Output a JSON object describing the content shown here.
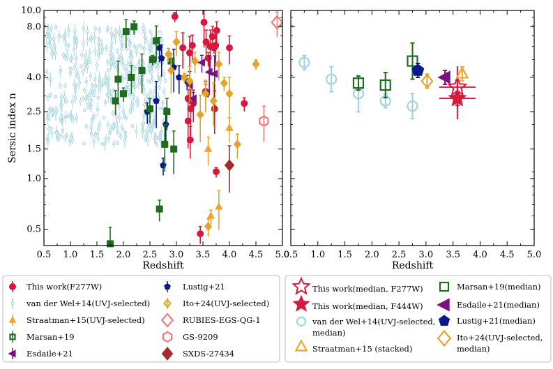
{
  "chart_data": [
    {
      "type": "scatter",
      "panel": "left",
      "xlabel": "Redshift",
      "ylabel": "Sersic index n",
      "xlim": [
        0.5,
        5.0
      ],
      "ylim": [
        0.4,
        10.0
      ],
      "yscale": "log",
      "xticks": [
        "0.5",
        "1.0",
        "1.5",
        "2.0",
        "2.5",
        "3.0",
        "3.5",
        "4.0",
        "4.5",
        "5.0"
      ],
      "yticks": [
        "0.5",
        "1.0",
        "1.5",
        "2.5",
        "4.0",
        "8.0",
        "10.0"
      ],
      "series": [
        {
          "name": "This work(F277W)",
          "color": "#d7193c",
          "marker": "circle",
          "x": [
            2.97,
            3.12,
            3.22,
            3.27,
            3.32,
            3.45,
            3.52,
            3.56,
            3.6,
            3.64,
            3.68,
            3.71,
            3.74,
            3.76,
            3.22,
            3.26,
            3.55,
            3.72,
            4.0,
            4.28,
            3.25,
            3.3,
            3.75
          ],
          "y": [
            9.2,
            6.0,
            3.0,
            2.6,
            2.8,
            0.47,
            8.5,
            6.5,
            5.2,
            6.1,
            7.0,
            6.0,
            6.2,
            7.6,
            2.2,
            1.7,
            3.3,
            2.6,
            6.0,
            2.8,
            5.6,
            6.2,
            1.1
          ]
        },
        {
          "name": "Lustig+21",
          "color": "#0a1a8c",
          "marker": "pentagon",
          "x": [
            2.45,
            2.62,
            2.72,
            2.75,
            2.95,
            3.05,
            3.2,
            2.8,
            2.68
          ],
          "y": [
            2.5,
            2.9,
            5.2,
            1.2,
            4.6,
            4.0,
            3.8,
            2.1,
            6.0
          ]
        },
        {
          "name": "Esdaile+21",
          "color": "#7b1080",
          "marker": "tri-left",
          "x": [
            3.25,
            3.48,
            3.72,
            3.55,
            3.32,
            3.62
          ],
          "y": [
            3.6,
            4.9,
            4.2,
            3.2,
            3.0,
            4.3
          ]
        },
        {
          "name": "Marsan+19",
          "color": "#1f6b1f",
          "marker": "square",
          "x": [
            1.9,
            2.05,
            2.2,
            2.35,
            2.5,
            2.55,
            2.62,
            2.68,
            2.78,
            2.82,
            2.9,
            2.95,
            2.15,
            2.0,
            1.75,
            1.85
          ],
          "y": [
            3.9,
            7.5,
            8.0,
            4.4,
            2.6,
            5.1,
            6.6,
            0.66,
            1.6,
            2.5,
            5.0,
            1.5,
            4.0,
            3.2,
            0.41,
            2.9
          ]
        },
        {
          "name": "Ito+24(UVJ-selected)",
          "color": "#e0a52a",
          "marker": "diamond",
          "x": [
            2.85,
            2.9,
            3.0,
            3.15,
            3.25,
            3.35,
            3.45,
            3.55,
            3.6,
            3.7,
            3.8,
            3.9,
            4.0,
            4.15,
            4.5
          ],
          "y": [
            5.5,
            4.4,
            6.5,
            4.0,
            3.8,
            5.0,
            2.4,
            3.2,
            0.52,
            2.9,
            4.8,
            3.7,
            3.2,
            1.6,
            4.8
          ]
        },
        {
          "name": "RUBIES-EGS-QG-1",
          "color": "#ee7c7c",
          "marker": "diamond-open",
          "x": [
            4.9
          ],
          "y": [
            8.5
          ]
        },
        {
          "name": "GS-9209",
          "color": "#ee7c7c",
          "marker": "hexagon-open",
          "x": [
            4.65
          ],
          "y": [
            2.2
          ]
        },
        {
          "name": "SXDS-27434",
          "color": "#a52a2a",
          "marker": "diamond",
          "x": [
            4.0
          ],
          "y": [
            1.2
          ]
        },
        {
          "name": "van der Wel+14(UVJ-selected)",
          "color": "#9fd3e0",
          "marker": "circle-small",
          "x": [],
          "y": []
        },
        {
          "name": "Straatman+15(UVJ-selected)",
          "color": "#f0a52a",
          "marker": "triangle-up",
          "x": [
            3.6,
            3.65,
            3.8,
            4.0
          ],
          "y": [
            1.5,
            0.6,
            0.68,
            2.0
          ]
        }
      ]
    },
    {
      "type": "scatter",
      "panel": "right",
      "xlabel": "Redshift",
      "xlim": [
        0.5,
        5.0
      ],
      "ylim": [
        0.4,
        10.0
      ],
      "yscale": "log",
      "xticks": [
        "0.5",
        "1.0",
        "1.5",
        "2.0",
        "2.5",
        "3.0",
        "3.5",
        "4.0",
        "4.5",
        "5.0"
      ],
      "series": [
        {
          "name": "This work(median, F277W)",
          "color": "#d7193c",
          "marker": "star-open",
          "x": [
            3.58
          ],
          "y": [
            3.5
          ]
        },
        {
          "name": "This work(median, F444W)",
          "color": "#d7193c",
          "marker": "star",
          "x": [
            3.58
          ],
          "y": [
            3.0
          ]
        },
        {
          "name": "van der Wel+14(UVJ-selected, median)",
          "color": "#9fd3e0",
          "marker": "circle-open",
          "x": [
            0.75,
            1.25,
            1.75,
            2.25,
            2.75
          ],
          "y": [
            4.9,
            3.9,
            3.2,
            2.9,
            2.7
          ]
        },
        {
          "name": "Straatman+15 (stacked)",
          "color": "#f0a52a",
          "marker": "triangle-open",
          "x": [
            3.67
          ],
          "y": [
            4.2
          ]
        },
        {
          "name": "Marsan+19(median)",
          "color": "#1f6b1f",
          "marker": "square-open",
          "x": [
            1.75,
            2.25,
            2.75
          ],
          "y": [
            3.7,
            3.6,
            5.0
          ]
        },
        {
          "name": "Esdaile+21(median)",
          "color": "#7b1080",
          "marker": "tri-left",
          "x": [
            3.35
          ],
          "y": [
            4.0
          ]
        },
        {
          "name": "Lustig+21(median)",
          "color": "#0a1a8c",
          "marker": "pentagon",
          "x": [
            2.85
          ],
          "y": [
            4.4
          ]
        },
        {
          "name": "Ito+24(UVJ-selected, median)",
          "color": "#e0a52a",
          "marker": "diamond-open",
          "x": [
            3.02
          ],
          "y": [
            3.8
          ]
        }
      ]
    }
  ],
  "legend_left": {
    "col1": [
      "This work(F277W)",
      "van der Wel+14(UVJ-selected)",
      "Straatman+15(UVJ-selected)",
      "Marsan+19",
      "Esdaile+21"
    ],
    "col2": [
      "Lustig+21",
      "Ito+24(UVJ-selected)",
      "RUBIES-EGS-QG-1",
      "GS-9209",
      "SXDS-27434"
    ]
  },
  "legend_right": {
    "col1": [
      "This work(median, F277W)",
      "This work(median, F444W)",
      "van der Wel+14(UVJ-selected,",
      "median)",
      "Straatman+15 (stacked)"
    ],
    "col2": [
      "Marsan+19(median)",
      "Esdaile+21(median)",
      "Lustig+21(median)",
      "Ito+24(UVJ-selected,",
      "median)"
    ]
  }
}
